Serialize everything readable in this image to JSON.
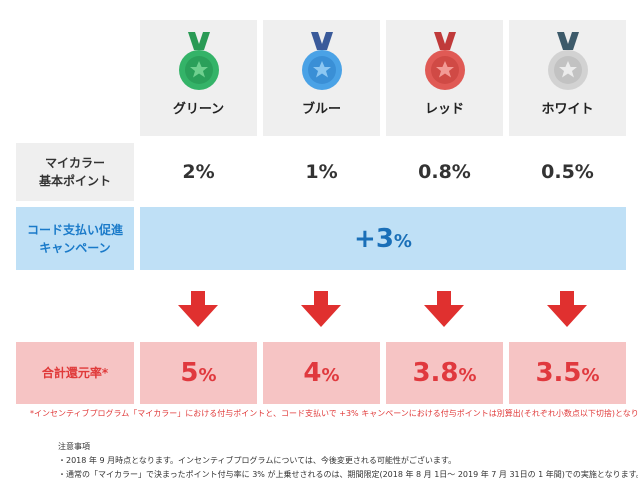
{
  "tiers": [
    {
      "name": "グリーン",
      "medal_color": "#34b368",
      "ribbon_color": "#2a9a55",
      "base": "2%",
      "total_num": "5",
      "total_unit": "%"
    },
    {
      "name": "ブルー",
      "medal_color": "#4aa2e6",
      "ribbon_color": "#3a5a9a",
      "base": "1%",
      "total_num": "4",
      "total_unit": "%"
    },
    {
      "name": "レッド",
      "medal_color": "#e05a55",
      "ribbon_color": "#c03a3a",
      "base": "0.8%",
      "total_num": "3.8",
      "total_unit": "%"
    },
    {
      "name": "ホワイト",
      "medal_color": "#cfcfcf",
      "ribbon_color": "#3d5a6a",
      "base": "0.5%",
      "total_num": "3.5",
      "total_unit": "%"
    }
  ],
  "rows": {
    "base_label_1": "マイカラー",
    "base_label_2": "基本ポイント",
    "campaign_label_1": "コード支払い促進",
    "campaign_label_2": "キャンペーン",
    "campaign_value": "+3",
    "campaign_unit": "%",
    "total_label": "合計還元率*"
  },
  "footnote": "*インセンティブプログラム「マイカラー」における付与ポイントと、コード支払いで +3% キャンペーンにおける付与ポイントは別算出(それぞれ小数点以下切捨)となります。",
  "notes": {
    "title": "注意事項",
    "items": [
      "・2018 年 9 月時点となります。インセンティブプログラムについては、今後変更される可能性がございます。",
      "・通常の「マイカラー」で決まったポイント付与率に 3% が上乗せされるのは、期間限定(2018 年 8 月 1日〜 2019 年 7 月 31日の 1 年間)での実施となります。"
    ]
  },
  "colors": {
    "gray": "#efefef",
    "blue": "#bfe0f6",
    "pink": "#f6c4c4",
    "arrow": "#e0302f"
  }
}
